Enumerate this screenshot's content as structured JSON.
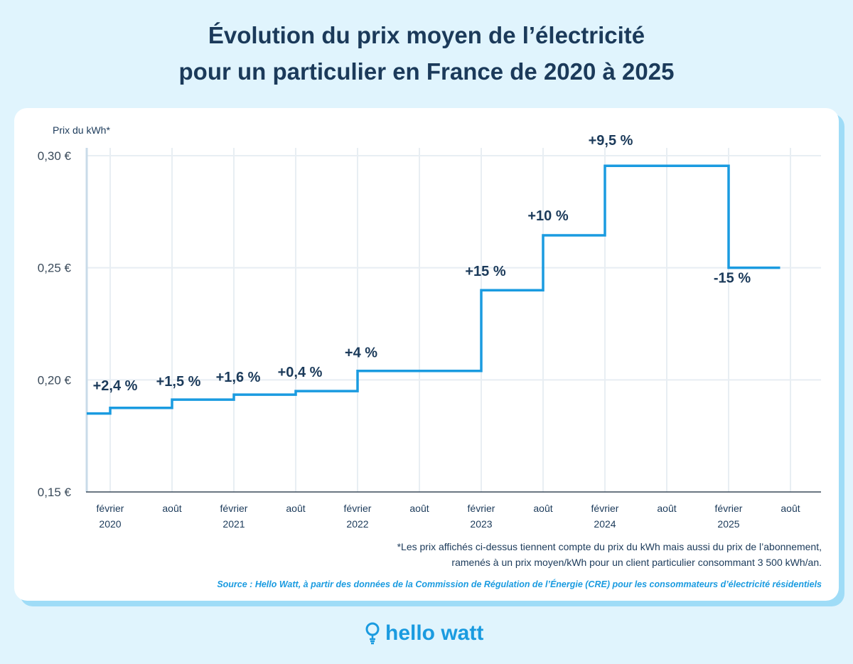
{
  "title_line1": "Évolution du prix moyen de l’électricité",
  "title_line2": "pour un particulier en France de 2020 à 2025",
  "chart_data": {
    "type": "line",
    "step": true,
    "ylabel": "Prix du kWh*",
    "ylim": [
      0.15,
      0.3
    ],
    "y_ticks": [
      {
        "value": 0.15,
        "label": "0,15 €"
      },
      {
        "value": 0.2,
        "label": "0,20 €"
      },
      {
        "value": 0.25,
        "label": "0,25 €"
      },
      {
        "value": 0.3,
        "label": "0,30 €"
      }
    ],
    "x_ticks": [
      {
        "date": "2020-02",
        "month": "février",
        "year": "2020"
      },
      {
        "date": "2020-08",
        "month": "août",
        "year": ""
      },
      {
        "date": "2021-02",
        "month": "février",
        "year": "2021"
      },
      {
        "date": "2021-08",
        "month": "août",
        "year": ""
      },
      {
        "date": "2022-02",
        "month": "février",
        "year": "2022"
      },
      {
        "date": "2022-08",
        "month": "août",
        "year": ""
      },
      {
        "date": "2023-02",
        "month": "février",
        "year": "2023"
      },
      {
        "date": "2023-08",
        "month": "août",
        "year": ""
      },
      {
        "date": "2024-02",
        "month": "février",
        "year": "2024"
      },
      {
        "date": "2024-08",
        "month": "août",
        "year": ""
      },
      {
        "date": "2025-02",
        "month": "février",
        "year": "2025"
      },
      {
        "date": "2025-08",
        "month": "août",
        "year": ""
      }
    ],
    "grid": true,
    "color": "#1a9be0",
    "points": [
      {
        "date": "2019-12",
        "value": 0.185,
        "label": ""
      },
      {
        "date": "2020-02",
        "value": 0.1875,
        "label": "+2,4 %"
      },
      {
        "date": "2020-08",
        "value": 0.1912,
        "label": "+1,5 %"
      },
      {
        "date": "2021-02",
        "value": 0.1934,
        "label": "+1,6 %"
      },
      {
        "date": "2021-08",
        "value": 0.195,
        "label": "+0,4 %"
      },
      {
        "date": "2022-02",
        "value": 0.204,
        "label": "+4 %"
      },
      {
        "date": "2023-02",
        "value": 0.24,
        "label": "+15 %"
      },
      {
        "date": "2023-08",
        "value": 0.2645,
        "label": "+10 %"
      },
      {
        "date": "2024-02",
        "value": 0.2955,
        "label": "+9,5 %"
      },
      {
        "date": "2025-02",
        "value": 0.25,
        "label": "-15 %"
      }
    ],
    "end_date": "2025-07"
  },
  "footnote_line1": "*Les prix affichés ci-dessus tiennent compte du prix du kWh mais aussi du prix de l’abonnement,",
  "footnote_line2": "ramenés à un prix moyen/kWh pour un client particulier consommant 3 500 kWh/an.",
  "source": "Source : Hello Watt, à partir des données de la Commission de Régulation de l’Énergie (CRE) pour les consommateurs d’électricité résidentiels",
  "logo": "hello watt"
}
